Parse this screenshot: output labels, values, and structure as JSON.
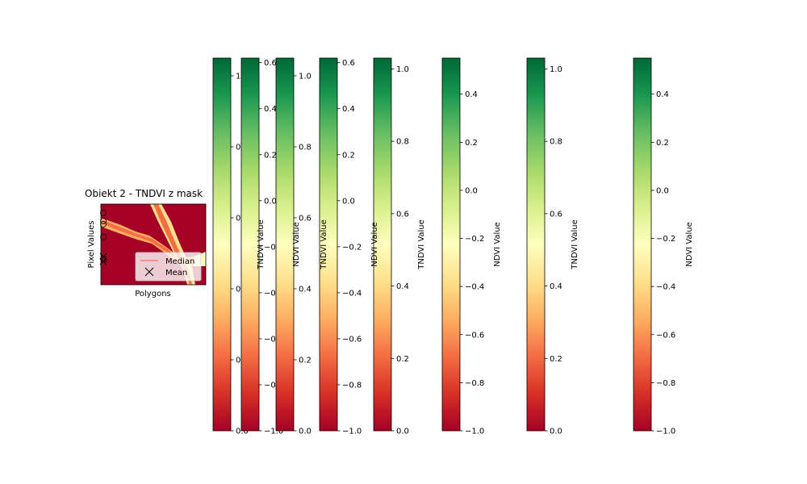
{
  "chart_data": [
    {
      "type": "image",
      "title": "Obiekt 2 - TNDVI z mask",
      "xlabel": "Polygons",
      "ylabel": "Pixel Values",
      "legend": {
        "location": "lower-right",
        "entries": [
          {
            "label": "Median",
            "marker": "line",
            "color": "#e8746f"
          },
          {
            "label": "Mean",
            "marker": "x",
            "color": "#000000"
          }
        ]
      },
      "colormap": "RdYlGn"
    },
    {
      "type": "colorbar",
      "label": "",
      "vmin": 0.0,
      "vmax": 1.05,
      "ticks": [
        "0.0",
        "0.2",
        "0.4",
        "0.6",
        "0.8",
        "1.0"
      ],
      "tick_values": [
        0.0,
        0.2,
        0.4,
        0.6,
        0.8,
        1.0
      ]
    },
    {
      "type": "colorbar",
      "label": "TNDVI Value",
      "vmin": -1.0,
      "vmax": 0.62,
      "ticks": [
        "−1.0",
        "−0.8",
        "−0.6",
        "−0.4",
        "−0.2",
        "0.0",
        "0.2",
        "0.4",
        "0.6"
      ],
      "tick_values": [
        -1.0,
        -0.8,
        -0.6,
        -0.4,
        -0.2,
        0.0,
        0.2,
        0.4,
        0.6
      ]
    },
    {
      "type": "colorbar",
      "label": "NDVI Value",
      "vmin": 0.0,
      "vmax": 1.05,
      "ticks": [
        "0.0",
        "0.2",
        "0.4",
        "0.6",
        "0.8",
        "1.0"
      ],
      "tick_values": [
        0.0,
        0.2,
        0.4,
        0.6,
        0.8,
        1.0
      ]
    },
    {
      "type": "colorbar",
      "label": "TNDVI Value",
      "vmin": -1.0,
      "vmax": 0.62,
      "ticks": [
        "−1.0",
        "−0.8",
        "−0.6",
        "−0.4",
        "−0.2",
        "0.0",
        "0.2",
        "0.4",
        "0.6"
      ],
      "tick_values": [
        -1.0,
        -0.8,
        -0.6,
        -0.4,
        -0.2,
        0.0,
        0.2,
        0.4,
        0.6
      ]
    },
    {
      "type": "colorbar",
      "label": "NDVI Value",
      "vmin": 0.0,
      "vmax": 1.03,
      "ticks": [
        "0.0",
        "0.2",
        "0.4",
        "0.6",
        "0.8",
        "1.0"
      ],
      "tick_values": [
        0.0,
        0.2,
        0.4,
        0.6,
        0.8,
        1.0
      ]
    },
    {
      "type": "colorbar",
      "label": "TNDVI Value",
      "vmin": -1.0,
      "vmax": 0.55,
      "ticks": [
        "−1.0",
        "−0.8",
        "−0.6",
        "−0.4",
        "−0.2",
        "0.0",
        "0.2",
        "0.4"
      ],
      "tick_values": [
        -1.0,
        -0.8,
        -0.6,
        -0.4,
        -0.2,
        0.0,
        0.2,
        0.4
      ]
    },
    {
      "type": "colorbar",
      "label": "NDVI Value",
      "vmin": 0.0,
      "vmax": 1.03,
      "ticks": [
        "0.0",
        "0.2",
        "0.4",
        "0.6",
        "0.8",
        "1.0"
      ],
      "tick_values": [
        0.0,
        0.2,
        0.4,
        0.6,
        0.8,
        1.0
      ]
    },
    {
      "type": "colorbar",
      "label": "TNDVI Value",
      "vmin": -1.0,
      "vmax": 0.55,
      "ticks": [
        "−1.0",
        "−0.8",
        "−0.6",
        "−0.4",
        "−0.2",
        "0.0",
        "0.2",
        "0.4"
      ],
      "tick_values": [
        -1.0,
        -0.8,
        -0.6,
        -0.4,
        -0.2,
        0.0,
        0.2,
        0.4
      ]
    },
    {
      "type": "colorbar",
      "label": "NDVI Value",
      "vmin": -1.0,
      "vmax": 0.55,
      "ticks": [
        "−1.0",
        "−0.8",
        "−0.6",
        "−0.4",
        "−0.2",
        "0.0",
        "0.2",
        "0.4"
      ],
      "tick_values": [
        -1.0,
        -0.8,
        -0.6,
        -0.4,
        -0.2,
        0.0,
        0.2,
        0.4
      ]
    }
  ],
  "colors": {
    "colormap_stops": [
      "#a50026",
      "#d73027",
      "#f46d43",
      "#fdae61",
      "#fee08b",
      "#ffffbf",
      "#d9ef8b",
      "#a6d96a",
      "#66bd63",
      "#1a9850",
      "#006837"
    ],
    "median_line": "#e8746f",
    "mask_red": "#a50026"
  }
}
